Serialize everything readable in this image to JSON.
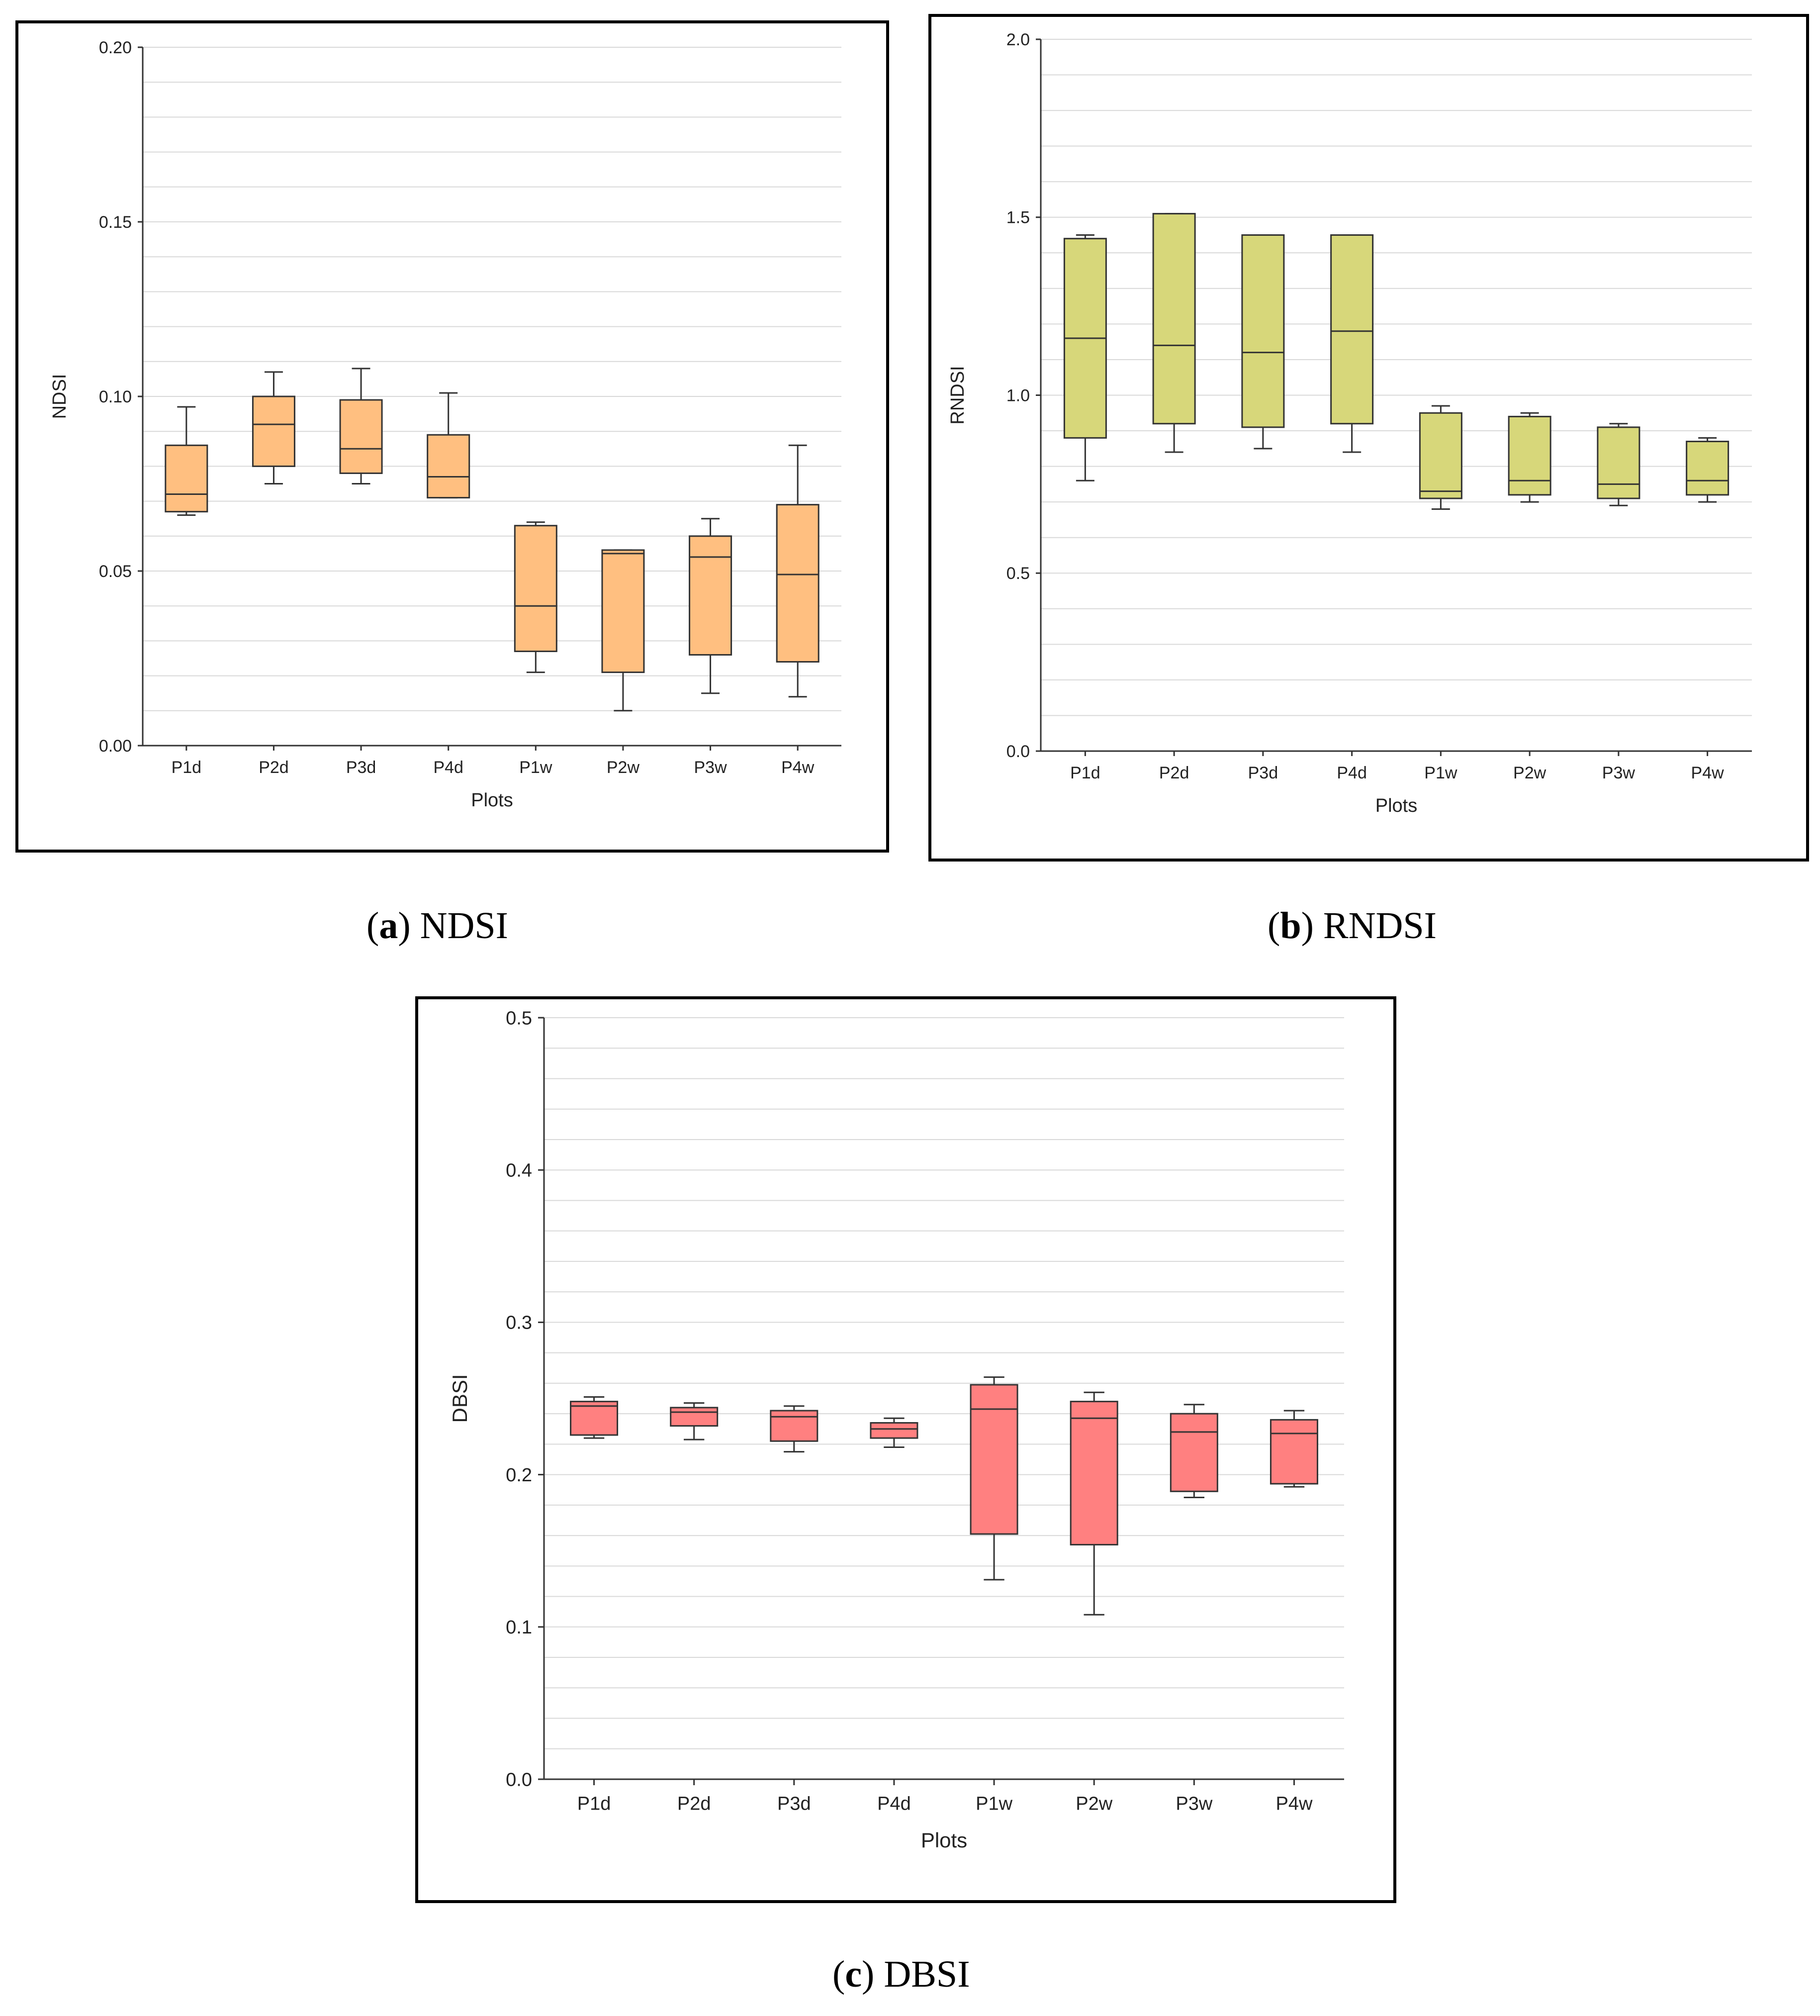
{
  "chart_data": [
    {
      "type": "box",
      "panel_label": "a",
      "caption": "NDSI",
      "xlabel": "Plots",
      "ylabel": "NDSI",
      "ylim": [
        0,
        0.2
      ],
      "yticks": [
        "0.00",
        "0.05",
        "0.10",
        "0.15",
        "0.20"
      ],
      "minor_grid_step": 0.01,
      "fill_color": "#ffbf80",
      "categories": [
        "P1d",
        "P2d",
        "P3d",
        "P4d",
        "P1w",
        "P2w",
        "P3w",
        "P4w"
      ],
      "boxes": [
        {
          "min": 0.066,
          "q1": 0.067,
          "median": 0.072,
          "q3": 0.086,
          "max": 0.097
        },
        {
          "min": 0.075,
          "q1": 0.08,
          "median": 0.092,
          "q3": 0.1,
          "max": 0.107
        },
        {
          "min": 0.075,
          "q1": 0.078,
          "median": 0.085,
          "q3": 0.099,
          "max": 0.108
        },
        {
          "min": 0.071,
          "q1": 0.071,
          "median": 0.077,
          "q3": 0.089,
          "max": 0.101
        },
        {
          "min": 0.021,
          "q1": 0.027,
          "median": 0.04,
          "q3": 0.063,
          "max": 0.064
        },
        {
          "min": 0.01,
          "q1": 0.021,
          "median": 0.055,
          "q3": 0.056,
          "max": 0.056
        },
        {
          "min": 0.015,
          "q1": 0.026,
          "median": 0.054,
          "q3": 0.06,
          "max": 0.065
        },
        {
          "min": 0.014,
          "q1": 0.024,
          "median": 0.049,
          "q3": 0.069,
          "max": 0.086
        }
      ]
    },
    {
      "type": "box",
      "panel_label": "b",
      "caption": "RNDSI",
      "xlabel": "Plots",
      "ylabel": "RNDSI",
      "ylim": [
        0,
        2.0
      ],
      "yticks": [
        "0.0",
        "0.5",
        "1.0",
        "1.5",
        "2.0"
      ],
      "minor_grid_step": 0.1,
      "fill_color": "#d7d77a",
      "categories": [
        "P1d",
        "P2d",
        "P3d",
        "P4d",
        "P1w",
        "P2w",
        "P3w",
        "P4w"
      ],
      "boxes": [
        {
          "min": 0.76,
          "q1": 0.88,
          "median": 1.16,
          "q3": 1.44,
          "max": 1.45
        },
        {
          "min": 0.84,
          "q1": 0.92,
          "median": 1.14,
          "q3": 1.51,
          "max": 1.51
        },
        {
          "min": 0.85,
          "q1": 0.91,
          "median": 1.12,
          "q3": 1.45,
          "max": 1.45
        },
        {
          "min": 0.84,
          "q1": 0.92,
          "median": 1.18,
          "q3": 1.45,
          "max": 1.45
        },
        {
          "min": 0.68,
          "q1": 0.71,
          "median": 0.73,
          "q3": 0.95,
          "max": 0.97
        },
        {
          "min": 0.7,
          "q1": 0.72,
          "median": 0.76,
          "q3": 0.94,
          "max": 0.95
        },
        {
          "min": 0.69,
          "q1": 0.71,
          "median": 0.75,
          "q3": 0.91,
          "max": 0.92
        },
        {
          "min": 0.7,
          "q1": 0.72,
          "median": 0.76,
          "q3": 0.87,
          "max": 0.88
        }
      ]
    },
    {
      "type": "box",
      "panel_label": "c",
      "caption": "DBSI",
      "xlabel": "Plots",
      "ylabel": "DBSI",
      "ylim": [
        0,
        0.5
      ],
      "yticks": [
        "0.0",
        "0.1",
        "0.2",
        "0.3",
        "0.4",
        "0.5"
      ],
      "minor_grid_step": 0.02,
      "fill_color": "#ff8080",
      "categories": [
        "P1d",
        "P2d",
        "P3d",
        "P4d",
        "P1w",
        "P2w",
        "P3w",
        "P4w"
      ],
      "boxes": [
        {
          "min": 0.224,
          "q1": 0.226,
          "median": 0.245,
          "q3": 0.248,
          "max": 0.251
        },
        {
          "min": 0.223,
          "q1": 0.232,
          "median": 0.241,
          "q3": 0.244,
          "max": 0.247
        },
        {
          "min": 0.215,
          "q1": 0.222,
          "median": 0.238,
          "q3": 0.242,
          "max": 0.245
        },
        {
          "min": 0.218,
          "q1": 0.224,
          "median": 0.23,
          "q3": 0.234,
          "max": 0.237
        },
        {
          "min": 0.131,
          "q1": 0.161,
          "median": 0.243,
          "q3": 0.259,
          "max": 0.264
        },
        {
          "min": 0.108,
          "q1": 0.154,
          "median": 0.237,
          "q3": 0.248,
          "max": 0.254
        },
        {
          "min": 0.185,
          "q1": 0.189,
          "median": 0.228,
          "q3": 0.24,
          "max": 0.246
        },
        {
          "min": 0.192,
          "q1": 0.194,
          "median": 0.227,
          "q3": 0.236,
          "max": 0.242
        }
      ]
    }
  ]
}
